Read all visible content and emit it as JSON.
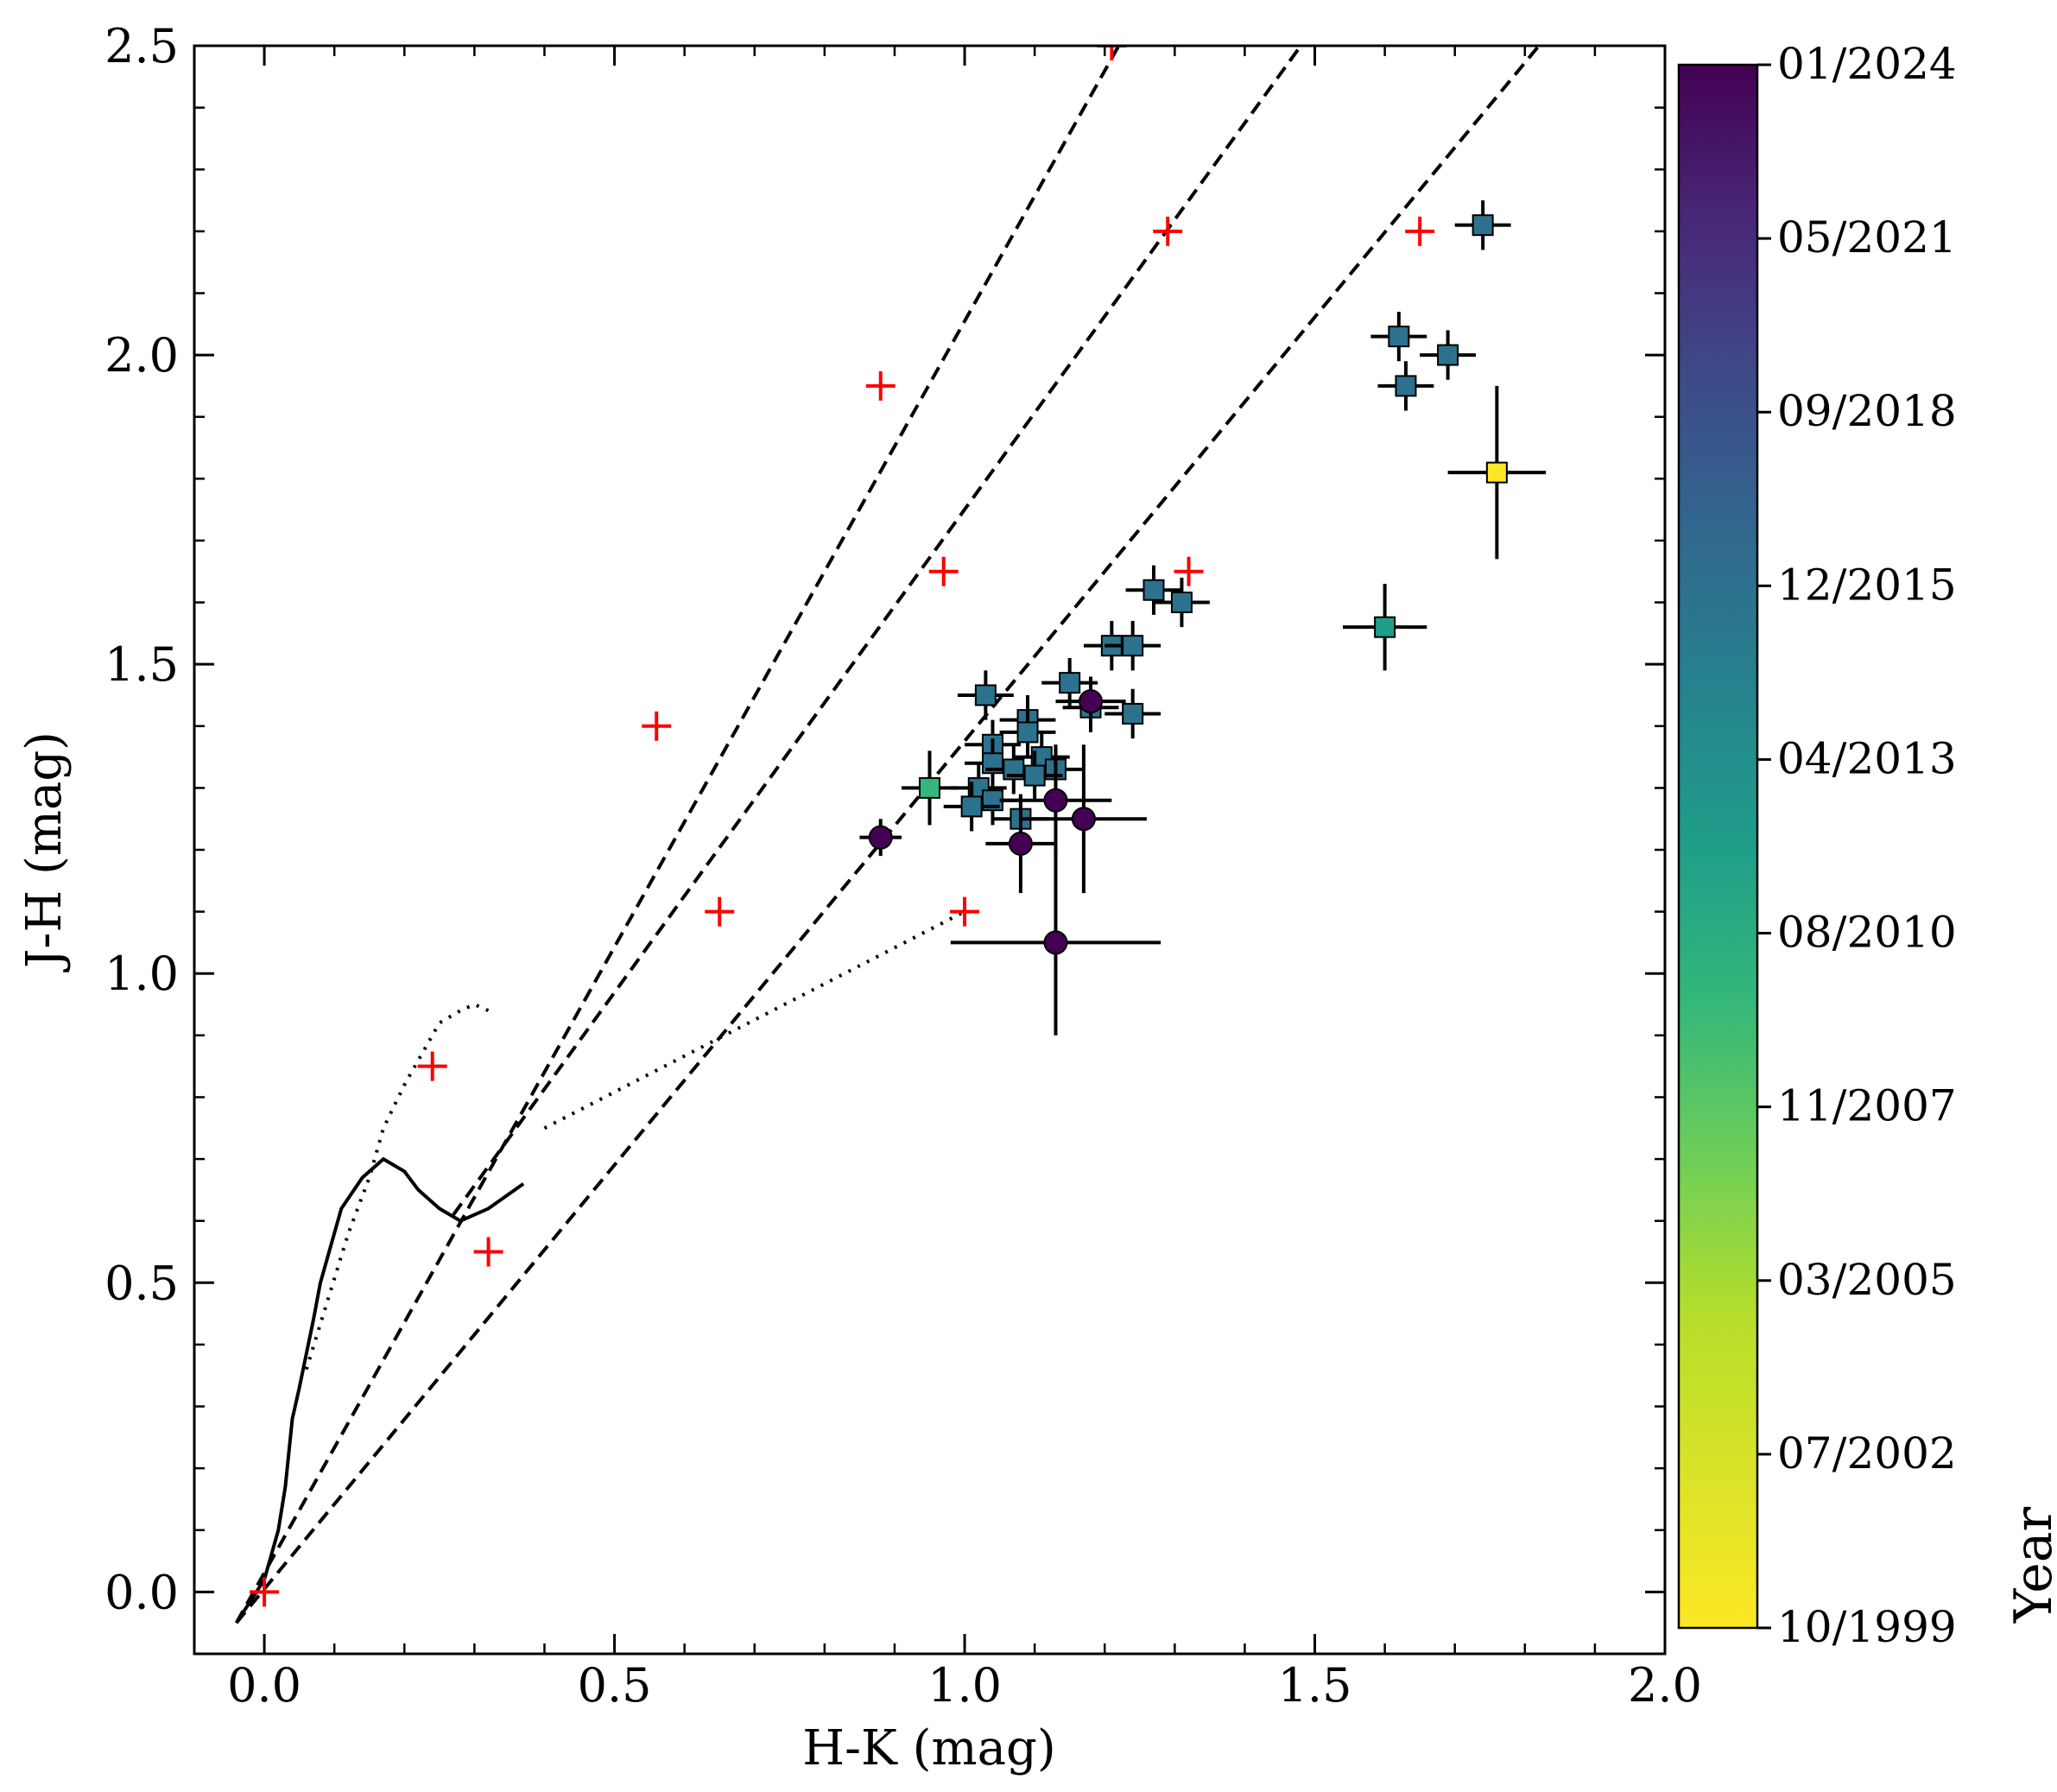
{
  "chart_data": {
    "type": "scatter",
    "title": "",
    "xlabel": "H-K (mag)",
    "ylabel": "J-H (mag)",
    "xlim": [
      -0.1,
      2.0
    ],
    "ylim": [
      -0.1,
      2.5
    ],
    "xticks": [
      0.0,
      0.5,
      1.0,
      1.5,
      2.0
    ],
    "xtick_labels": [
      "0.0",
      "0.5",
      "1.0",
      "1.5",
      "2.0"
    ],
    "yticks": [
      0.0,
      0.5,
      1.0,
      1.5,
      2.0,
      2.5
    ],
    "ytick_labels": [
      "0.0",
      "0.5",
      "1.0",
      "1.5",
      "2.0",
      "2.5"
    ],
    "colorbar": {
      "label": "Year",
      "colormap": "viridis_r",
      "tick_labels": [
        "01/2024",
        "05/2021",
        "09/2018",
        "12/2015",
        "04/2013",
        "08/2010",
        "11/2007",
        "03/2005",
        "07/2002",
        "10/1999"
      ]
    },
    "reddening_lines": [
      {
        "name": "reddening-line-1",
        "x": [
          -0.04,
          1.22
        ],
        "y": [
          -0.05,
          2.5
        ]
      },
      {
        "name": "reddening-line-2",
        "x": [
          0.27,
          1.48
        ],
        "y": [
          0.61,
          2.5
        ]
      },
      {
        "name": "reddening-line-3",
        "x": [
          -0.04,
          1.82
        ],
        "y": [
          -0.05,
          2.5
        ]
      }
    ],
    "extinction_markers": {
      "color": "#ff0000",
      "points": [
        [
          0.0,
          0.0
        ],
        [
          0.24,
          0.85
        ],
        [
          0.32,
          0.55
        ],
        [
          0.56,
          1.4
        ],
        [
          0.65,
          1.1
        ],
        [
          0.88,
          1.95
        ],
        [
          0.97,
          1.65
        ],
        [
          1.0,
          1.1
        ],
        [
          1.21,
          2.5
        ],
        [
          1.29,
          2.2
        ],
        [
          1.32,
          1.65
        ],
        [
          1.65,
          2.2
        ]
      ]
    },
    "dwarf_locus": {
      "name": "main-sequence-locus",
      "x": [
        -0.04,
        0.0,
        0.02,
        0.03,
        0.04,
        0.05,
        0.07,
        0.08,
        0.1,
        0.11,
        0.14,
        0.17,
        0.2,
        0.22,
        0.25,
        0.28,
        0.32,
        0.37
      ],
      "y": [
        -0.05,
        0.02,
        0.1,
        0.17,
        0.28,
        0.33,
        0.44,
        0.5,
        0.58,
        0.62,
        0.67,
        0.7,
        0.68,
        0.65,
        0.62,
        0.6,
        0.62,
        0.66
      ]
    },
    "giant_locus": {
      "name": "giant-branch-locus",
      "x": [
        0.06,
        0.09,
        0.12,
        0.15,
        0.17,
        0.2,
        0.23,
        0.25,
        0.28,
        0.3,
        0.32
      ],
      "y": [
        0.36,
        0.47,
        0.58,
        0.67,
        0.75,
        0.82,
        0.88,
        0.92,
        0.94,
        0.95,
        0.94
      ]
    },
    "ctts_locus": {
      "name": "ctts-locus",
      "x": [
        0.4,
        1.0
      ],
      "y": [
        0.75,
        1.1
      ]
    },
    "series": [
      {
        "name": "Squares",
        "marker": "square",
        "points": [
          {
            "x": 1.74,
            "y": 2.21,
            "xerr": 0.04,
            "yerr": 0.04,
            "color": "#2c728e"
          },
          {
            "x": 1.62,
            "y": 2.03,
            "xerr": 0.04,
            "yerr": 0.04,
            "color": "#2c728e"
          },
          {
            "x": 1.69,
            "y": 2.0,
            "xerr": 0.04,
            "yerr": 0.04,
            "color": "#2c728e"
          },
          {
            "x": 1.63,
            "y": 1.95,
            "xerr": 0.04,
            "yerr": 0.04,
            "color": "#2c728e"
          },
          {
            "x": 1.76,
            "y": 1.81,
            "xerr": 0.07,
            "yerr": 0.14,
            "color": "#fde725"
          },
          {
            "x": 1.27,
            "y": 1.62,
            "xerr": 0.04,
            "yerr": 0.04,
            "color": "#2c728e"
          },
          {
            "x": 1.31,
            "y": 1.6,
            "xerr": 0.04,
            "yerr": 0.04,
            "color": "#2c728e"
          },
          {
            "x": 1.6,
            "y": 1.56,
            "xerr": 0.06,
            "yerr": 0.07,
            "color": "#1f9e89"
          },
          {
            "x": 1.21,
            "y": 1.53,
            "xerr": 0.04,
            "yerr": 0.04,
            "color": "#2c728e"
          },
          {
            "x": 1.24,
            "y": 1.53,
            "xerr": 0.04,
            "yerr": 0.04,
            "color": "#2c728e"
          },
          {
            "x": 1.15,
            "y": 1.47,
            "xerr": 0.04,
            "yerr": 0.04,
            "color": "#2c728e"
          },
          {
            "x": 1.03,
            "y": 1.45,
            "xerr": 0.04,
            "yerr": 0.04,
            "color": "#2c728e"
          },
          {
            "x": 1.18,
            "y": 1.43,
            "xerr": 0.04,
            "yerr": 0.04,
            "color": "#2c728e"
          },
          {
            "x": 1.24,
            "y": 1.42,
            "xerr": 0.04,
            "yerr": 0.04,
            "color": "#2c728e"
          },
          {
            "x": 1.09,
            "y": 1.41,
            "xerr": 0.04,
            "yerr": 0.04,
            "color": "#2c728e"
          },
          {
            "x": 1.09,
            "y": 1.39,
            "xerr": 0.04,
            "yerr": 0.04,
            "color": "#2c728e"
          },
          {
            "x": 1.04,
            "y": 1.37,
            "xerr": 0.04,
            "yerr": 0.04,
            "color": "#2c728e"
          },
          {
            "x": 1.11,
            "y": 1.35,
            "xerr": 0.04,
            "yerr": 0.04,
            "color": "#2c728e"
          },
          {
            "x": 1.04,
            "y": 1.34,
            "xerr": 0.04,
            "yerr": 0.04,
            "color": "#2c728e"
          },
          {
            "x": 1.07,
            "y": 1.33,
            "xerr": 0.04,
            "yerr": 0.04,
            "color": "#2c728e"
          },
          {
            "x": 1.13,
            "y": 1.33,
            "xerr": 0.04,
            "yerr": 0.04,
            "color": "#2c728e"
          },
          {
            "x": 1.1,
            "y": 1.32,
            "xerr": 0.04,
            "yerr": 0.04,
            "color": "#2c728e"
          },
          {
            "x": 0.95,
            "y": 1.3,
            "xerr": 0.04,
            "yerr": 0.06,
            "color": "#35b779"
          },
          {
            "x": 1.02,
            "y": 1.3,
            "xerr": 0.04,
            "yerr": 0.04,
            "color": "#2c728e"
          },
          {
            "x": 1.04,
            "y": 1.28,
            "xerr": 0.04,
            "yerr": 0.04,
            "color": "#2c728e"
          },
          {
            "x": 1.01,
            "y": 1.27,
            "xerr": 0.04,
            "yerr": 0.04,
            "color": "#2c728e"
          },
          {
            "x": 1.08,
            "y": 1.25,
            "xerr": 0.04,
            "yerr": 0.04,
            "color": "#2c728e"
          }
        ]
      },
      {
        "name": "Circles",
        "marker": "circle",
        "points": [
          {
            "x": 1.18,
            "y": 1.44,
            "xerr": 0.05,
            "yerr": 0.04,
            "color": "#440154"
          },
          {
            "x": 1.13,
            "y": 1.28,
            "xerr": 0.08,
            "yerr": 0.09,
            "color": "#440154"
          },
          {
            "x": 1.17,
            "y": 1.25,
            "xerr": 0.09,
            "yerr": 0.12,
            "color": "#440154"
          },
          {
            "x": 0.88,
            "y": 1.22,
            "xerr": 0.03,
            "yerr": 0.03,
            "color": "#440154"
          },
          {
            "x": 1.08,
            "y": 1.21,
            "xerr": 0.05,
            "yerr": 0.08,
            "color": "#440154"
          },
          {
            "x": 1.13,
            "y": 1.05,
            "xerr": 0.15,
            "yerr": 0.15,
            "color": "#440154"
          }
        ]
      }
    ]
  }
}
